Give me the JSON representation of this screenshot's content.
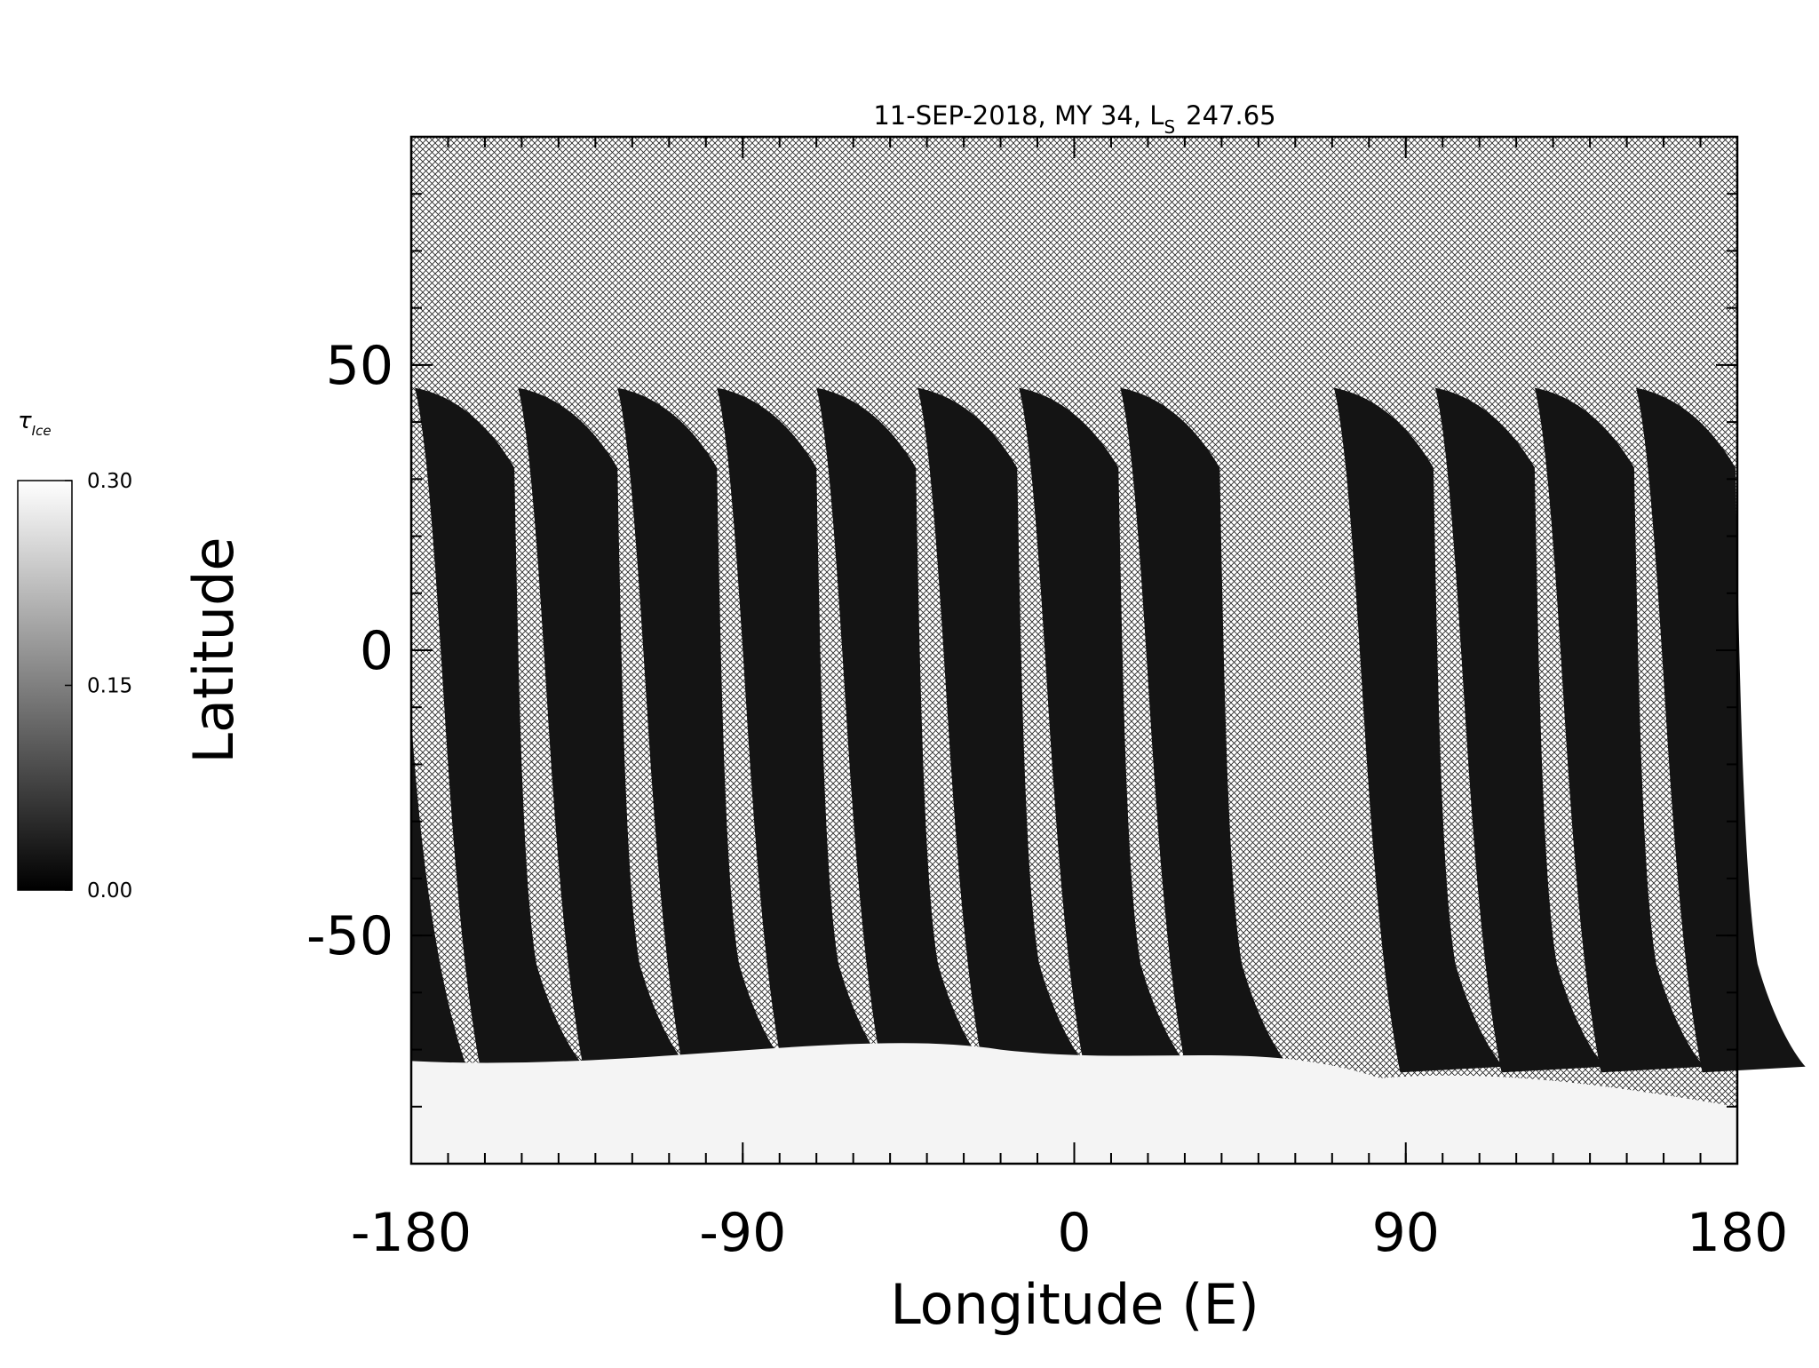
{
  "chart_data": {
    "type": "map",
    "title": "11-SEP-2018, MY 34,  L",
    "title_subscript": "S",
    "title_suffix": "247.65",
    "xlabel": "Longitude (E)",
    "ylabel": "Latitude",
    "xlim": [
      -180,
      180
    ],
    "ylim": [
      -90,
      90
    ],
    "xticks": [
      -180,
      -90,
      0,
      90,
      180
    ],
    "yticks": [
      -50,
      0,
      50
    ],
    "xminor": 10,
    "yminor": 10,
    "colorbar": {
      "label": "τ",
      "label_subscript": "Ice",
      "lim": [
        0,
        0.3
      ],
      "ticks": [
        {
          "value": 0,
          "label": "0.00"
        },
        {
          "value": 0.15,
          "label": "0.15"
        },
        {
          "value": 0.3,
          "label": "0.30"
        }
      ]
    }
  }
}
